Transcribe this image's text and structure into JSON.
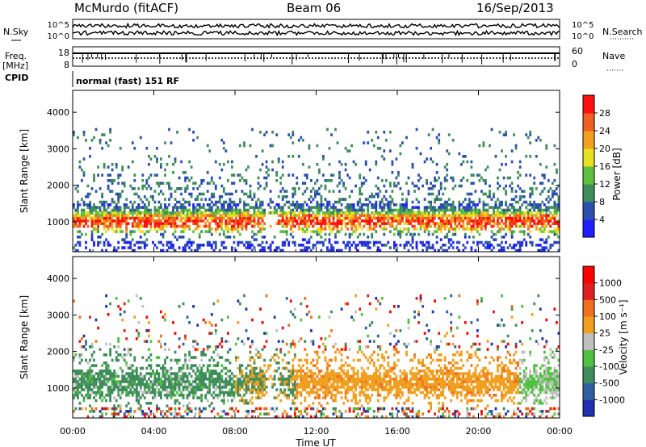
{
  "header": {
    "title": "McMurdo (fitACF)",
    "beam": "Beam 06",
    "date": "16/Sep/2013"
  },
  "info": {
    "nsky_label": "N.Sky",
    "nsky_ticks": [
      "10^5",
      "10^0"
    ],
    "nsearch_label": "N.Search",
    "nsearch_ticks": [
      "10^5",
      "10^0"
    ],
    "freq_label": "Freq.",
    "freq_unit": "[MHz]",
    "freq_ticks": [
      "18",
      "8"
    ],
    "nave_label": "Nave",
    "nave_ticks": [
      "60",
      "0"
    ],
    "cpid_label": "CPID",
    "cpid_value": "normal (fast) 151 RF"
  },
  "chart_data": [
    {
      "type": "heatmap",
      "parameter": "Power",
      "ylabel": "Slant Range [km]",
      "ylim": [
        180,
        4600
      ],
      "yticks": [
        1000,
        2000,
        3000,
        4000
      ],
      "xlim": [
        0,
        24
      ],
      "xticks": [
        0,
        4,
        8,
        12,
        16,
        20,
        24
      ],
      "colorbar_label": "Power [dB]",
      "colorbar_ticks": [
        "4",
        "8",
        "12",
        "16",
        "20",
        "24",
        "28"
      ],
      "colorbar_colors": [
        "#1f1fff",
        "#2c4fb0",
        "#3f8c5c",
        "#5fbe3c",
        "#e8e020",
        "#f2a020",
        "#f06020",
        "#ff1010"
      ]
    },
    {
      "type": "heatmap",
      "parameter": "Velocity",
      "ylabel": "Slant Range [km]",
      "ylim": [
        180,
        4600
      ],
      "yticks": [
        1000,
        2000,
        3000,
        4000
      ],
      "xlim": [
        0,
        24
      ],
      "xticks": [
        0,
        4,
        8,
        12,
        16,
        20,
        24
      ],
      "xlabel": "Time UT",
      "xtick_labels": [
        "00:00",
        "04:00",
        "08:00",
        "12:00",
        "16:00",
        "20:00",
        "00:00"
      ],
      "colorbar_label": "Velocity [m s⁻¹]",
      "colorbar_ticks": [
        "1000",
        "500",
        "100",
        "25",
        "-25",
        "-100",
        "-500",
        "-1000"
      ],
      "colorbar_colors": [
        "#2030b0",
        "#3060a0",
        "#3f8c5c",
        "#50c040",
        "#c0c0c0",
        "#f0a020",
        "#f07020",
        "#e02020",
        "#ff0000"
      ]
    }
  ]
}
